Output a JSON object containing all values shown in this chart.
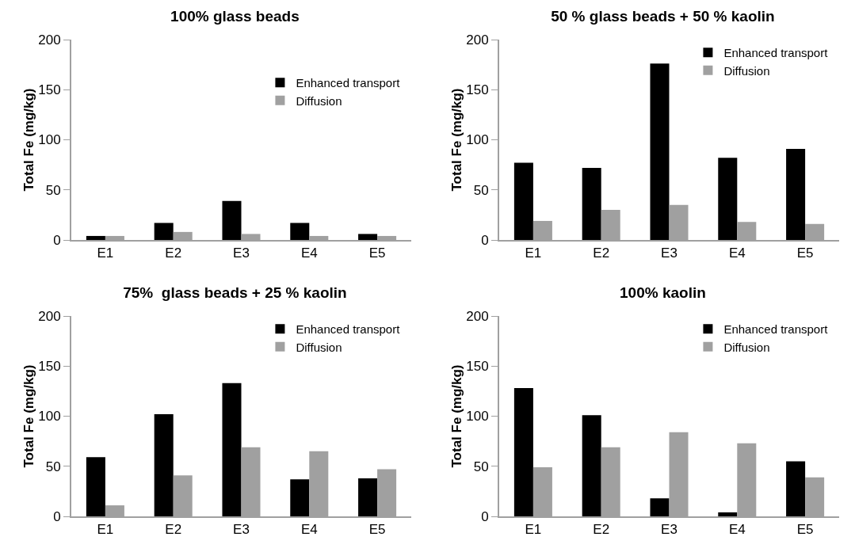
{
  "chart_data": [
    {
      "type": "bar",
      "title": "100% glass beads",
      "ylabel": "Total Fe (mg/kg)",
      "categories": [
        "E1",
        "E2",
        "E3",
        "E4",
        "E5"
      ],
      "series": [
        {
          "name": "Enhanced transport",
          "color": "#000000",
          "values": [
            4,
            17,
            39,
            17,
            6
          ]
        },
        {
          "name": "Diffusion",
          "color": "#a0a0a0",
          "values": [
            4,
            8,
            6,
            4,
            4
          ]
        }
      ],
      "ylim": [
        0,
        200
      ],
      "yticks": [
        0,
        50,
        100,
        150,
        200
      ],
      "grid": false,
      "legend": "right"
    },
    {
      "type": "bar",
      "title": "50 % glass beads + 50 % kaolin",
      "ylabel": "Total Fe (mg/kg)",
      "categories": [
        "E1",
        "E2",
        "E3",
        "E4",
        "E5"
      ],
      "series": [
        {
          "name": "Enhanced transport",
          "color": "#000000",
          "values": [
            77,
            72,
            176,
            82,
            91
          ]
        },
        {
          "name": "Diffusion",
          "color": "#a0a0a0",
          "values": [
            19,
            30,
            35,
            18,
            16
          ]
        }
      ],
      "ylim": [
        0,
        200
      ],
      "yticks": [
        0,
        50,
        100,
        150,
        200
      ],
      "grid": false,
      "legend": "top right"
    },
    {
      "type": "bar",
      "title": "75%  glass beads + 25 % kaolin",
      "ylabel": "Total Fe (mg/kg)",
      "categories": [
        "E1",
        "E2",
        "E3",
        "E4",
        "E5"
      ],
      "series": [
        {
          "name": "Enhanced transport",
          "color": "#000000",
          "values": [
            59,
            102,
            133,
            37,
            38
          ]
        },
        {
          "name": "Diffusion",
          "color": "#a0a0a0",
          "values": [
            11,
            41,
            69,
            65,
            47
          ]
        }
      ],
      "ylim": [
        0,
        200
      ],
      "yticks": [
        0,
        50,
        100,
        150,
        200
      ],
      "grid": false,
      "legend": "top right"
    },
    {
      "type": "bar",
      "title": "100% kaolin",
      "ylabel": "Total Fe (mg/kg)",
      "categories": [
        "E1",
        "E2",
        "E3",
        "E4",
        "E5"
      ],
      "series": [
        {
          "name": "Enhanced transport",
          "color": "#000000",
          "values": [
            128,
            101,
            18,
            4,
            55
          ]
        },
        {
          "name": "Diffusion",
          "color": "#a0a0a0",
          "values": [
            49,
            69,
            84,
            73,
            39
          ]
        }
      ],
      "ylim": [
        0,
        200
      ],
      "yticks": [
        0,
        50,
        100,
        150,
        200
      ],
      "grid": false,
      "legend": "top right"
    }
  ]
}
